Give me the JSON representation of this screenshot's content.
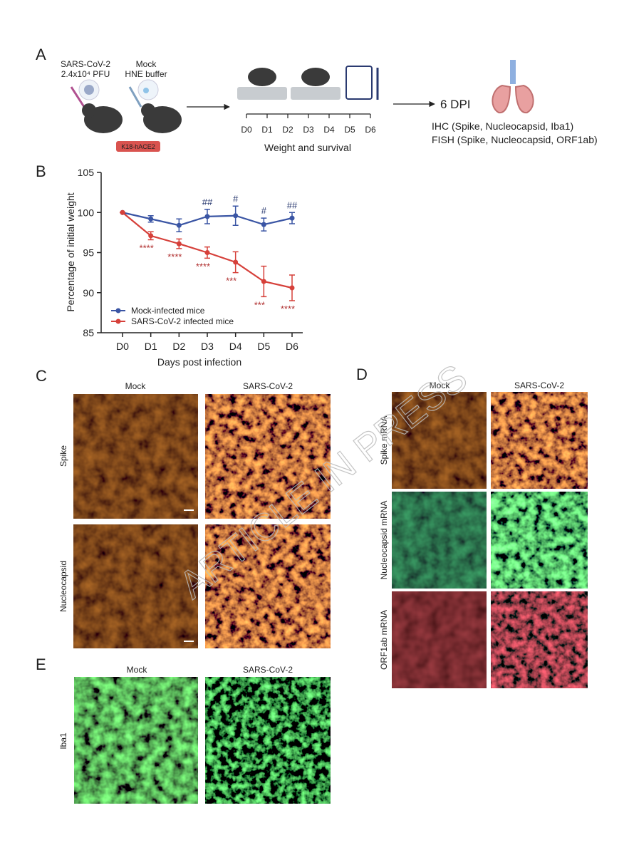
{
  "panel_a": {
    "label": "A",
    "infection": [
      "SARS-CoV-2",
      "2.4x10⁴ PFU"
    ],
    "mock": [
      "Mock",
      "HNE buffer"
    ],
    "strain": "K18-hACE2",
    "days": [
      "D0",
      "D1",
      "D2",
      "D3",
      "D4",
      "D5",
      "D6"
    ],
    "timeline_label": "Weight and survival",
    "endpoint": "6 DPI",
    "assays": [
      "IHC (Spike, Nucleocapsid, Iba1)",
      "FISH (Spike, Nucleocapsid, ORF1ab)"
    ]
  },
  "chart_data": {
    "type": "line",
    "panel_label": "B",
    "x_label": "Days post infection",
    "y_label": "Percentage of initial weight",
    "categories": [
      "D0",
      "D1",
      "D2",
      "D3",
      "D4",
      "D5",
      "D6"
    ],
    "ylim": [
      85,
      105
    ],
    "yticks": [
      85,
      90,
      95,
      100,
      105
    ],
    "legend": "lower left",
    "series": [
      {
        "name": "Mock-infected mice",
        "color": "#3a55a4",
        "values": [
          100,
          99.2,
          98.4,
          99.5,
          99.6,
          98.5,
          99.3
        ],
        "errors": [
          0,
          0.4,
          0.8,
          0.9,
          1.2,
          0.8,
          0.7
        ],
        "annotations": [
          null,
          null,
          null,
          "##",
          "#",
          "#",
          "##"
        ]
      },
      {
        "name": "SARS-CoV-2 infected mice",
        "color": "#d6403a",
        "values": [
          100,
          97.1,
          96.1,
          95.0,
          93.8,
          91.4,
          90.6
        ],
        "errors": [
          0,
          0.5,
          0.6,
          0.7,
          1.3,
          1.9,
          1.6
        ],
        "annotations": [
          null,
          "****",
          "****",
          "****",
          "***",
          "***",
          "****"
        ]
      }
    ]
  },
  "panel_c": {
    "label": "C",
    "columns": [
      "Mock",
      "SARS-CoV-2"
    ],
    "rows": [
      "Spike",
      "Nucleocapsid"
    ]
  },
  "panel_d": {
    "label": "D",
    "columns": [
      "Mock",
      "SARS-CoV-2"
    ],
    "rows": [
      "Spike mRNA",
      "Nucleocapsid mRNA",
      "ORF1ab mRNA"
    ]
  },
  "panel_e": {
    "label": "E",
    "columns": [
      "Mock",
      "SARS-CoV-2"
    ],
    "rows": [
      "Iba1"
    ]
  },
  "watermark": "ARTICLE IN PRESS"
}
